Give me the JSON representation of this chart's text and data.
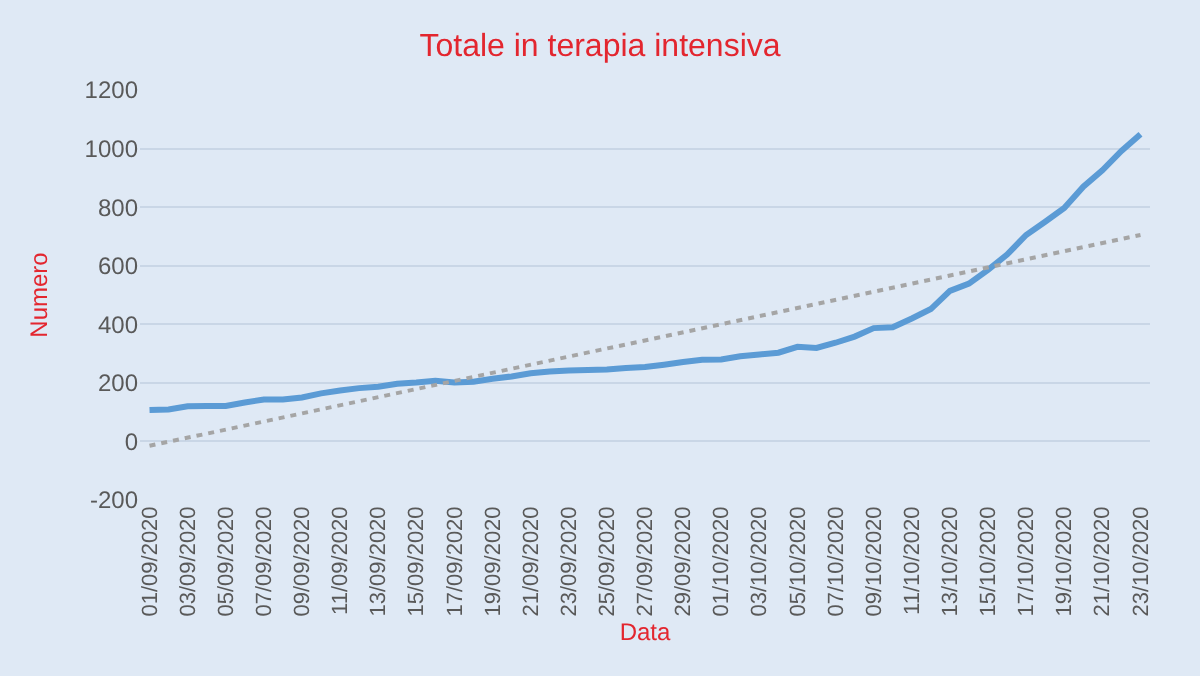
{
  "chart_data": {
    "type": "line",
    "title": "Totale in terapia intensiva",
    "xlabel": "Data",
    "ylabel": "Numero",
    "x": [
      "2020-09-01",
      "2020-09-02",
      "2020-09-03",
      "2020-09-04",
      "2020-09-05",
      "2020-09-06",
      "2020-09-07",
      "2020-09-08",
      "2020-09-09",
      "2020-09-10",
      "2020-09-11",
      "2020-09-12",
      "2020-09-13",
      "2020-09-14",
      "2020-09-15",
      "2020-09-16",
      "2020-09-17",
      "2020-09-18",
      "2020-09-19",
      "2020-09-20",
      "2020-09-21",
      "2020-09-22",
      "2020-09-23",
      "2020-09-24",
      "2020-09-25",
      "2020-09-26",
      "2020-09-27",
      "2020-09-28",
      "2020-09-29",
      "2020-09-30",
      "2020-10-01",
      "2020-10-02",
      "2020-10-03",
      "2020-10-04",
      "2020-10-05",
      "2020-10-06",
      "2020-10-07",
      "2020-10-08",
      "2020-10-09",
      "2020-10-10",
      "2020-10-11",
      "2020-10-12",
      "2020-10-13",
      "2020-10-14",
      "2020-10-15",
      "2020-10-16",
      "2020-10-17",
      "2020-10-18",
      "2020-10-19",
      "2020-10-20",
      "2020-10-21",
      "2020-10-22",
      "2020-10-23"
    ],
    "series": [
      {
        "color": "#5b9bd5",
        "values": [
          107,
          109,
          120,
          121,
          121,
          133,
          143,
          143,
          150,
          164,
          174,
          182,
          187,
          197,
          201,
          207,
          201,
          204,
          214,
          222,
          233,
          239,
          242,
          244,
          246,
          251,
          254,
          262,
          271,
          279,
          280,
          291,
          297,
          303,
          323,
          319,
          337,
          358,
          387,
          390,
          420,
          452,
          514,
          539,
          586,
          638,
          705,
          750,
          797,
          870,
          926,
          992,
          1049
        ]
      },
      {
        "type": "line",
        "color": "#a5a5a5",
        "line_style": "dotted",
        "x": [
          "2020-09-01",
          "2020-10-23"
        ],
        "values": [
          -15,
          705
        ]
      }
    ],
    "xlim": [
      "2020-08-31T12:00",
      "2020-10-23T12:00"
    ],
    "xticks": [
      {
        "value": "2020-09-01",
        "label": "01/09/2020"
      },
      {
        "value": "2020-09-03",
        "label": "03/09/2020"
      },
      {
        "value": "2020-09-05",
        "label": "05/09/2020"
      },
      {
        "value": "2020-09-07",
        "label": "07/09/2020"
      },
      {
        "value": "2020-09-09",
        "label": "09/09/2020"
      },
      {
        "value": "2020-09-11",
        "label": "11/09/2020"
      },
      {
        "value": "2020-09-13",
        "label": "13/09/2020"
      },
      {
        "value": "2020-09-15",
        "label": "15/09/2020"
      },
      {
        "value": "2020-09-17",
        "label": "17/09/2020"
      },
      {
        "value": "2020-09-19",
        "label": "19/09/2020"
      },
      {
        "value": "2020-09-21",
        "label": "21/09/2020"
      },
      {
        "value": "2020-09-23",
        "label": "23/09/2020"
      },
      {
        "value": "2020-09-25",
        "label": "25/09/2020"
      },
      {
        "value": "2020-09-27",
        "label": "27/09/2020"
      },
      {
        "value": "2020-09-29",
        "label": "29/09/2020"
      },
      {
        "value": "2020-10-01",
        "label": "01/10/2020"
      },
      {
        "value": "2020-10-03",
        "label": "03/10/2020"
      },
      {
        "value": "2020-10-05",
        "label": "05/10/2020"
      },
      {
        "value": "2020-10-07",
        "label": "07/10/2020"
      },
      {
        "value": "2020-10-09",
        "label": "09/10/2020"
      },
      {
        "value": "2020-10-11",
        "label": "11/10/2020"
      },
      {
        "value": "2020-10-13",
        "label": "13/10/2020"
      },
      {
        "value": "2020-10-15",
        "label": "15/10/2020"
      },
      {
        "value": "2020-10-17",
        "label": "17/10/2020"
      },
      {
        "value": "2020-10-19",
        "label": "19/10/2020"
      },
      {
        "value": "2020-10-21",
        "label": "21/10/2020"
      },
      {
        "value": "2020-10-23",
        "label": "23/10/2020"
      }
    ],
    "ylim": [
      -200,
      1200
    ],
    "yticks": [
      -200,
      0,
      200,
      400,
      600,
      800,
      1000,
      1200
    ],
    "grid": "y",
    "marker": "none",
    "line_style": "solid"
  }
}
